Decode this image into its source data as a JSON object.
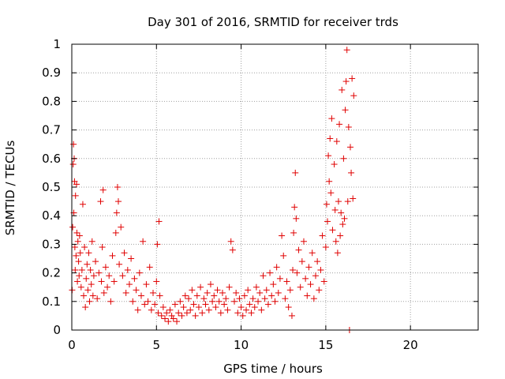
{
  "chart_data": {
    "type": "scatter",
    "title": "Day 301 of 2016, SRMTID for receiver trds",
    "xlabel": "GPS time / hours",
    "ylabel": "SRMTID / TECUs",
    "xlim": [
      0,
      24
    ],
    "ylim": [
      0,
      1
    ],
    "xticks": [
      0,
      5,
      10,
      15,
      20
    ],
    "yticks": [
      0,
      0.1,
      0.2,
      0.3,
      0.4,
      0.5,
      0.6,
      0.7,
      0.8,
      0.9,
      1
    ],
    "grid": true,
    "marker": "+",
    "colors": {
      "points": "#e00000",
      "grid": "#a0a0a0",
      "axis": "#000000"
    },
    "series": [
      {
        "points": [
          [
            0.02,
            0.14
          ],
          [
            0.05,
            0.36
          ],
          [
            0.08,
            0.58
          ],
          [
            0.1,
            0.65
          ],
          [
            0.12,
            0.41
          ],
          [
            0.14,
            0.6
          ],
          [
            0.16,
            0.52
          ],
          [
            0.18,
            0.29
          ],
          [
            0.2,
            0.21
          ],
          [
            0.22,
            0.47
          ],
          [
            0.25,
            0.26
          ],
          [
            0.28,
            0.51
          ],
          [
            0.3,
            0.34
          ],
          [
            0.33,
            0.17
          ],
          [
            0.36,
            0.31
          ],
          [
            0.4,
            0.24
          ],
          [
            0.43,
            0.19
          ],
          [
            0.46,
            0.33
          ],
          [
            0.5,
            0.27
          ],
          [
            0.55,
            0.15
          ],
          [
            0.6,
            0.21
          ],
          [
            0.65,
            0.44
          ],
          [
            0.7,
            0.12
          ],
          [
            0.75,
            0.29
          ],
          [
            0.8,
            0.08
          ],
          [
            0.85,
            0.18
          ],
          [
            0.9,
            0.23
          ],
          [
            0.95,
            0.14
          ],
          [
            1.0,
            0.27
          ],
          [
            1.05,
            0.1
          ],
          [
            1.1,
            0.21
          ],
          [
            1.15,
            0.16
          ],
          [
            1.2,
            0.31
          ],
          [
            1.25,
            0.12
          ],
          [
            1.3,
            0.19
          ],
          [
            1.4,
            0.24
          ],
          [
            1.5,
            0.11
          ],
          [
            1.6,
            0.2
          ],
          [
            1.7,
            0.45
          ],
          [
            1.75,
            0.17
          ],
          [
            1.8,
            0.29
          ],
          [
            1.85,
            0.49
          ],
          [
            1.9,
            0.13
          ],
          [
            2.0,
            0.22
          ],
          [
            2.1,
            0.15
          ],
          [
            2.2,
            0.19
          ],
          [
            2.3,
            0.1
          ],
          [
            2.4,
            0.26
          ],
          [
            2.5,
            0.17
          ],
          [
            2.6,
            0.34
          ],
          [
            2.65,
            0.41
          ],
          [
            2.7,
            0.5
          ],
          [
            2.75,
            0.45
          ],
          [
            2.8,
            0.23
          ],
          [
            2.9,
            0.36
          ],
          [
            3.0,
            0.19
          ],
          [
            3.1,
            0.27
          ],
          [
            3.2,
            0.13
          ],
          [
            3.3,
            0.21
          ],
          [
            3.4,
            0.16
          ],
          [
            3.5,
            0.25
          ],
          [
            3.6,
            0.1
          ],
          [
            3.7,
            0.18
          ],
          [
            3.8,
            0.14
          ],
          [
            3.9,
            0.07
          ],
          [
            4.0,
            0.2
          ],
          [
            4.1,
            0.12
          ],
          [
            4.2,
            0.31
          ],
          [
            4.3,
            0.09
          ],
          [
            4.4,
            0.16
          ],
          [
            4.5,
            0.1
          ],
          [
            4.6,
            0.22
          ],
          [
            4.7,
            0.07
          ],
          [
            4.8,
            0.13
          ],
          [
            4.9,
            0.09
          ],
          [
            5.0,
            0.17
          ],
          [
            5.05,
            0.3
          ],
          [
            5.1,
            0.06
          ],
          [
            5.15,
            0.38
          ],
          [
            5.2,
            0.12
          ],
          [
            5.3,
            0.05
          ],
          [
            5.4,
            0.08
          ],
          [
            5.5,
            0.04
          ],
          [
            5.6,
            0.06
          ],
          [
            5.7,
            0.03
          ],
          [
            5.8,
            0.07
          ],
          [
            5.9,
            0.05
          ],
          [
            6.0,
            0.04
          ],
          [
            6.1,
            0.09
          ],
          [
            6.2,
            0.03
          ],
          [
            6.3,
            0.06
          ],
          [
            6.4,
            0.1
          ],
          [
            6.5,
            0.05
          ],
          [
            6.6,
            0.08
          ],
          [
            6.7,
            0.12
          ],
          [
            6.8,
            0.06
          ],
          [
            6.9,
            0.11
          ],
          [
            7.0,
            0.07
          ],
          [
            7.1,
            0.14
          ],
          [
            7.2,
            0.09
          ],
          [
            7.3,
            0.05
          ],
          [
            7.4,
            0.12
          ],
          [
            7.5,
            0.08
          ],
          [
            7.6,
            0.15
          ],
          [
            7.7,
            0.06
          ],
          [
            7.8,
            0.11
          ],
          [
            7.9,
            0.09
          ],
          [
            8.0,
            0.13
          ],
          [
            8.1,
            0.07
          ],
          [
            8.2,
            0.16
          ],
          [
            8.3,
            0.1
          ],
          [
            8.4,
            0.12
          ],
          [
            8.5,
            0.08
          ],
          [
            8.6,
            0.14
          ],
          [
            8.7,
            0.1
          ],
          [
            8.8,
            0.06
          ],
          [
            8.9,
            0.13
          ],
          [
            9.0,
            0.09
          ],
          [
            9.1,
            0.11
          ],
          [
            9.2,
            0.07
          ],
          [
            9.3,
            0.15
          ],
          [
            9.4,
            0.31
          ],
          [
            9.5,
            0.28
          ],
          [
            9.6,
            0.1
          ],
          [
            9.7,
            0.13
          ],
          [
            9.8,
            0.06
          ],
          [
            9.9,
            0.11
          ],
          [
            10.0,
            0.08
          ],
          [
            10.1,
            0.05
          ],
          [
            10.2,
            0.12
          ],
          [
            10.3,
            0.07
          ],
          [
            10.4,
            0.14
          ],
          [
            10.5,
            0.09
          ],
          [
            10.6,
            0.06
          ],
          [
            10.7,
            0.11
          ],
          [
            10.8,
            0.08
          ],
          [
            10.9,
            0.15
          ],
          [
            11.0,
            0.1
          ],
          [
            11.1,
            0.13
          ],
          [
            11.2,
            0.07
          ],
          [
            11.3,
            0.19
          ],
          [
            11.4,
            0.11
          ],
          [
            11.5,
            0.14
          ],
          [
            11.6,
            0.09
          ],
          [
            11.7,
            0.2
          ],
          [
            11.8,
            0.12
          ],
          [
            11.9,
            0.16
          ],
          [
            12.0,
            0.1
          ],
          [
            12.1,
            0.22
          ],
          [
            12.2,
            0.13
          ],
          [
            12.3,
            0.18
          ],
          [
            12.4,
            0.33
          ],
          [
            12.5,
            0.26
          ],
          [
            12.6,
            0.11
          ],
          [
            12.7,
            0.17
          ],
          [
            12.8,
            0.08
          ],
          [
            12.9,
            0.14
          ],
          [
            13.0,
            0.05
          ],
          [
            13.05,
            0.21
          ],
          [
            13.1,
            0.34
          ],
          [
            13.15,
            0.43
          ],
          [
            13.2,
            0.55
          ],
          [
            13.25,
            0.39
          ],
          [
            13.3,
            0.2
          ],
          [
            13.4,
            0.28
          ],
          [
            13.5,
            0.15
          ],
          [
            13.6,
            0.24
          ],
          [
            13.7,
            0.31
          ],
          [
            13.8,
            0.18
          ],
          [
            13.9,
            0.12
          ],
          [
            14.0,
            0.22
          ],
          [
            14.1,
            0.16
          ],
          [
            14.2,
            0.27
          ],
          [
            14.3,
            0.11
          ],
          [
            14.4,
            0.19
          ],
          [
            14.5,
            0.24
          ],
          [
            14.6,
            0.14
          ],
          [
            14.7,
            0.21
          ],
          [
            14.8,
            0.33
          ],
          [
            14.9,
            0.17
          ],
          [
            15.0,
            0.29
          ],
          [
            15.05,
            0.44
          ],
          [
            15.1,
            0.38
          ],
          [
            15.15,
            0.61
          ],
          [
            15.2,
            0.52
          ],
          [
            15.25,
            0.67
          ],
          [
            15.3,
            0.48
          ],
          [
            15.35,
            0.74
          ],
          [
            15.4,
            0.35
          ],
          [
            15.5,
            0.58
          ],
          [
            15.55,
            0.42
          ],
          [
            15.6,
            0.31
          ],
          [
            15.65,
            0.66
          ],
          [
            15.7,
            0.27
          ],
          [
            15.75,
            0.45
          ],
          [
            15.8,
            0.72
          ],
          [
            15.85,
            0.33
          ],
          [
            15.9,
            0.41
          ],
          [
            15.95,
            0.84
          ],
          [
            16.0,
            0.37
          ],
          [
            16.05,
            0.6
          ],
          [
            16.1,
            0.39
          ],
          [
            16.15,
            0.77
          ],
          [
            16.2,
            0.87
          ],
          [
            16.25,
            0.98
          ],
          [
            16.3,
            0.45
          ],
          [
            16.35,
            0.71
          ],
          [
            16.4,
            0.0
          ],
          [
            16.45,
            0.64
          ],
          [
            16.5,
            0.55
          ],
          [
            16.55,
            0.88
          ],
          [
            16.6,
            0.46
          ],
          [
            16.65,
            0.82
          ]
        ]
      }
    ]
  }
}
